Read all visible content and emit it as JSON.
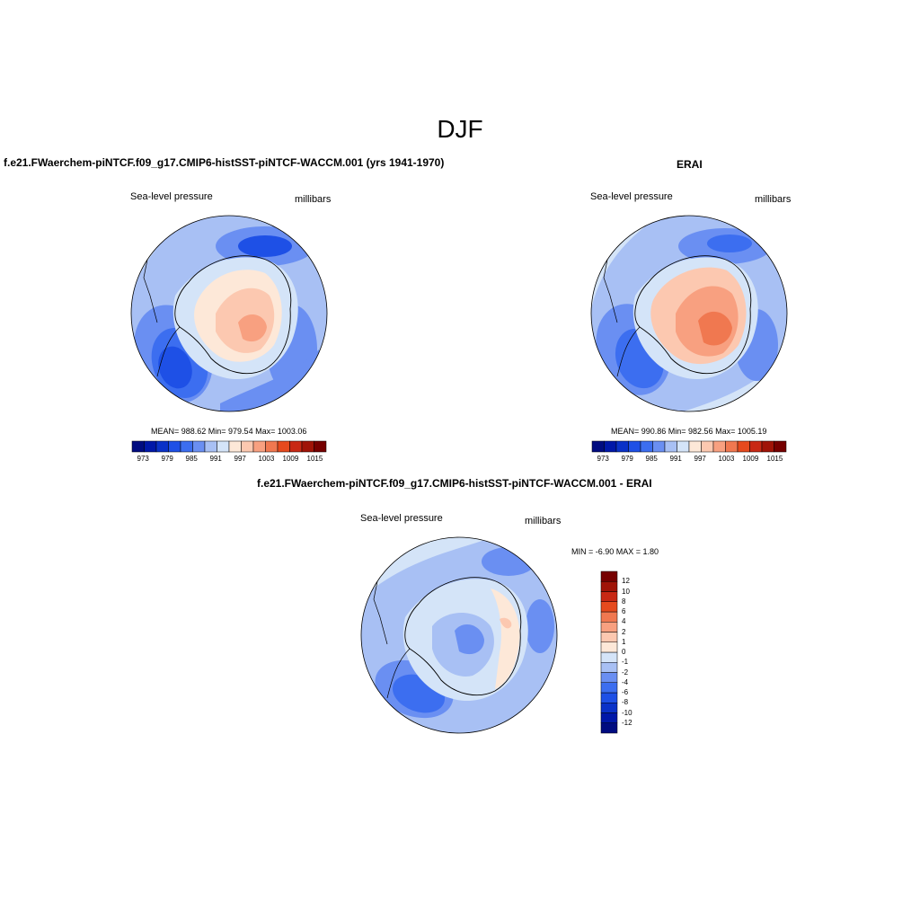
{
  "figure": {
    "title": "DJF"
  },
  "palette": {
    "abs": [
      "#000c80",
      "#0018a8",
      "#0a32c8",
      "#1e50e6",
      "#3c6ef0",
      "#6a8ff2",
      "#a8c0f4",
      "#d4e4f8",
      "#fde8d8",
      "#fcc8b0",
      "#f8a080",
      "#f07850",
      "#e64a1e",
      "#c82814",
      "#a01408",
      "#760000"
    ],
    "diff": [
      "#000c80",
      "#0018a8",
      "#0a32c8",
      "#1e50e6",
      "#3c6ef0",
      "#6a8ff2",
      "#a8c0f4",
      "#d4e4f8",
      "#fde8d8",
      "#fcc8b0",
      "#f8a080",
      "#f07850",
      "#e64a1e",
      "#c82814",
      "#a01408",
      "#760000"
    ]
  },
  "panels": [
    {
      "title": "f.e21.FWaerchem-piNTCF.f09_g17.CMIP6-histSST-piNTCF-WACCM.001 (yrs 1941-1970)",
      "variable": "Sea-level pressure",
      "units": "millibars",
      "stats": "MEAN= 988.62  Min= 979.54  Max= 1003.06",
      "colorbar_labels": [
        "973",
        "979",
        "985",
        "991",
        "997",
        "1003",
        "1009",
        "1015"
      ]
    },
    {
      "title": "ERAI",
      "variable": "Sea-level pressure",
      "units": "millibars",
      "stats": "MEAN= 990.86  Min= 982.56  Max= 1005.19",
      "colorbar_labels": [
        "973",
        "979",
        "985",
        "991",
        "997",
        "1003",
        "1009",
        "1015"
      ]
    },
    {
      "title": "f.e21.FWaerchem-piNTCF.f09_g17.CMIP6-histSST-piNTCF-WACCM.001 - ERAI",
      "variable": "Sea-level pressure",
      "units": "millibars",
      "stats": "MIN =  -6.90 MAX =   1.80",
      "colorbar_labels": [
        "12",
        "10",
        "8",
        "6",
        "4",
        "2",
        "1",
        "0",
        "-1",
        "-2",
        "-4",
        "-6",
        "-8",
        "-10",
        "-12"
      ]
    }
  ]
}
